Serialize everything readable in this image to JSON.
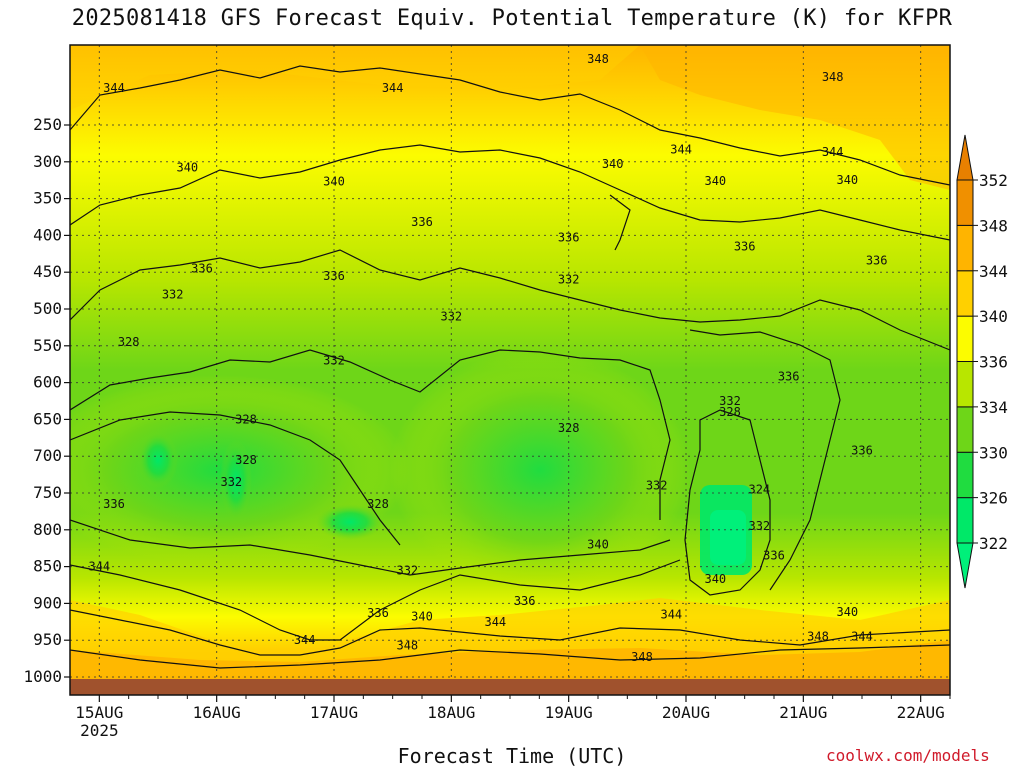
{
  "chart_data": {
    "type": "heatmap",
    "title": "2025081418 GFS Forecast Equiv. Potential Temperature (K) for KFPR",
    "xlabel": "Forecast Time (UTC)",
    "ylabel": "",
    "x_tick_labels": [
      "15AUG",
      "16AUG",
      "17AUG",
      "18AUG",
      "19AUG",
      "20AUG",
      "21AUG",
      "22AUG"
    ],
    "x_year_label": "2025",
    "y_tick_labels": [
      "250",
      "300",
      "350",
      "400",
      "450",
      "500",
      "550",
      "600",
      "650",
      "700",
      "750",
      "800",
      "850",
      "900",
      "950",
      "1000"
    ],
    "y_axis": "pressure (hPa), inverted",
    "colorbar_levels": [
      322,
      326,
      330,
      334,
      336,
      340,
      344,
      348,
      352
    ],
    "colorbar_colors": [
      "#00f07a",
      "#00e868",
      "#20dc40",
      "#6ed618",
      "#b8e600",
      "#fcfc00",
      "#ffd000",
      "#ffb400",
      "#f09000",
      "#e88000"
    ],
    "contour_labels": [
      {
        "text": "344",
        "time": "15AUG 03Z",
        "pressure": 200
      },
      {
        "text": "344",
        "time": "17AUG 12Z",
        "pressure": 200
      },
      {
        "text": "348",
        "time": "19AUG 06Z",
        "pressure": 160
      },
      {
        "text": "348",
        "time": "21AUG 06Z",
        "pressure": 185
      },
      {
        "text": "344",
        "time": "19AUG 23Z",
        "pressure": 283
      },
      {
        "text": "344",
        "time": "21AUG 06Z",
        "pressure": 287
      },
      {
        "text": "340",
        "time": "15AUG 18Z",
        "pressure": 308
      },
      {
        "text": "340",
        "time": "19AUG 09Z",
        "pressure": 303
      },
      {
        "text": "340",
        "time": "17AUG 00Z",
        "pressure": 327
      },
      {
        "text": "340",
        "time": "20AUG 06Z",
        "pressure": 326
      },
      {
        "text": "340",
        "time": "21AUG 09Z",
        "pressure": 325
      },
      {
        "text": "336",
        "time": "17AUG 18Z",
        "pressure": 382
      },
      {
        "text": "336",
        "time": "19AUG 00Z",
        "pressure": 403
      },
      {
        "text": "336",
        "time": "20AUG 12Z",
        "pressure": 415
      },
      {
        "text": "336",
        "time": "15AUG 21Z",
        "pressure": 445
      },
      {
        "text": "336",
        "time": "17AUG 00Z",
        "pressure": 455
      },
      {
        "text": "336",
        "time": "21AUG 15Z",
        "pressure": 434
      },
      {
        "text": "336",
        "time": "20AUG 21Z",
        "pressure": 592
      },
      {
        "text": "336",
        "time": "21AUG 12Z",
        "pressure": 692
      },
      {
        "text": "332",
        "time": "15AUG 15Z",
        "pressure": 480
      },
      {
        "text": "332",
        "time": "19AUG 00Z",
        "pressure": 460
      },
      {
        "text": "332",
        "time": "18AUG 00Z",
        "pressure": 510
      },
      {
        "text": "332",
        "time": "17AUG 00Z",
        "pressure": 570
      },
      {
        "text": "332",
        "time": "20AUG 09Z",
        "pressure": 625
      },
      {
        "text": "332",
        "time": "16AUG 03Z",
        "pressure": 735
      },
      {
        "text": "332",
        "time": "19AUG 18Z",
        "pressure": 740
      },
      {
        "text": "332",
        "time": "20AUG 15Z",
        "pressure": 795
      },
      {
        "text": "332",
        "time": "17AUG 15Z",
        "pressure": 855
      },
      {
        "text": "328",
        "time": "15AUG 06Z",
        "pressure": 545
      },
      {
        "text": "328",
        "time": "16AUG 06Z",
        "pressure": 650
      },
      {
        "text": "328",
        "time": "16AUG 06Z",
        "pressure": 705
      },
      {
        "text": "328",
        "time": "17AUG 09Z",
        "pressure": 765
      },
      {
        "text": "328",
        "time": "19AUG 00Z",
        "pressure": 662
      },
      {
        "text": "328",
        "time": "20AUG 09Z",
        "pressure": 640
      },
      {
        "text": "324",
        "time": "20AUG 15Z",
        "pressure": 745
      },
      {
        "text": "340",
        "time": "19AUG 06Z",
        "pressure": 820
      },
      {
        "text": "340",
        "time": "20AUG 06Z",
        "pressure": 867
      },
      {
        "text": "340",
        "time": "17AUG 18Z",
        "pressure": 918
      },
      {
        "text": "340",
        "time": "21AUG 09Z",
        "pressure": 912
      },
      {
        "text": "336",
        "time": "17AUG 09Z",
        "pressure": 913
      },
      {
        "text": "336",
        "time": "18AUG 15Z",
        "pressure": 897
      },
      {
        "text": "336",
        "time": "15AUG 03Z",
        "pressure": 765
      },
      {
        "text": "336",
        "time": "20AUG 18Z",
        "pressure": 835
      },
      {
        "text": "344",
        "time": "15AUG 00Z",
        "pressure": 850
      },
      {
        "text": "344",
        "time": "16AUG 18Z",
        "pressure": 950
      },
      {
        "text": "344",
        "time": "18AUG 09Z",
        "pressure": 925
      },
      {
        "text": "344",
        "time": "19AUG 21Z",
        "pressure": 915
      },
      {
        "text": "344",
        "time": "21AUG 12Z",
        "pressure": 945
      },
      {
        "text": "348",
        "time": "17AUG 15Z",
        "pressure": 957
      },
      {
        "text": "348",
        "time": "19AUG 15Z",
        "pressure": 973
      },
      {
        "text": "348",
        "time": "21AUG 03Z",
        "pressure": 945
      }
    ]
  },
  "credit": "coolwx.com/models"
}
